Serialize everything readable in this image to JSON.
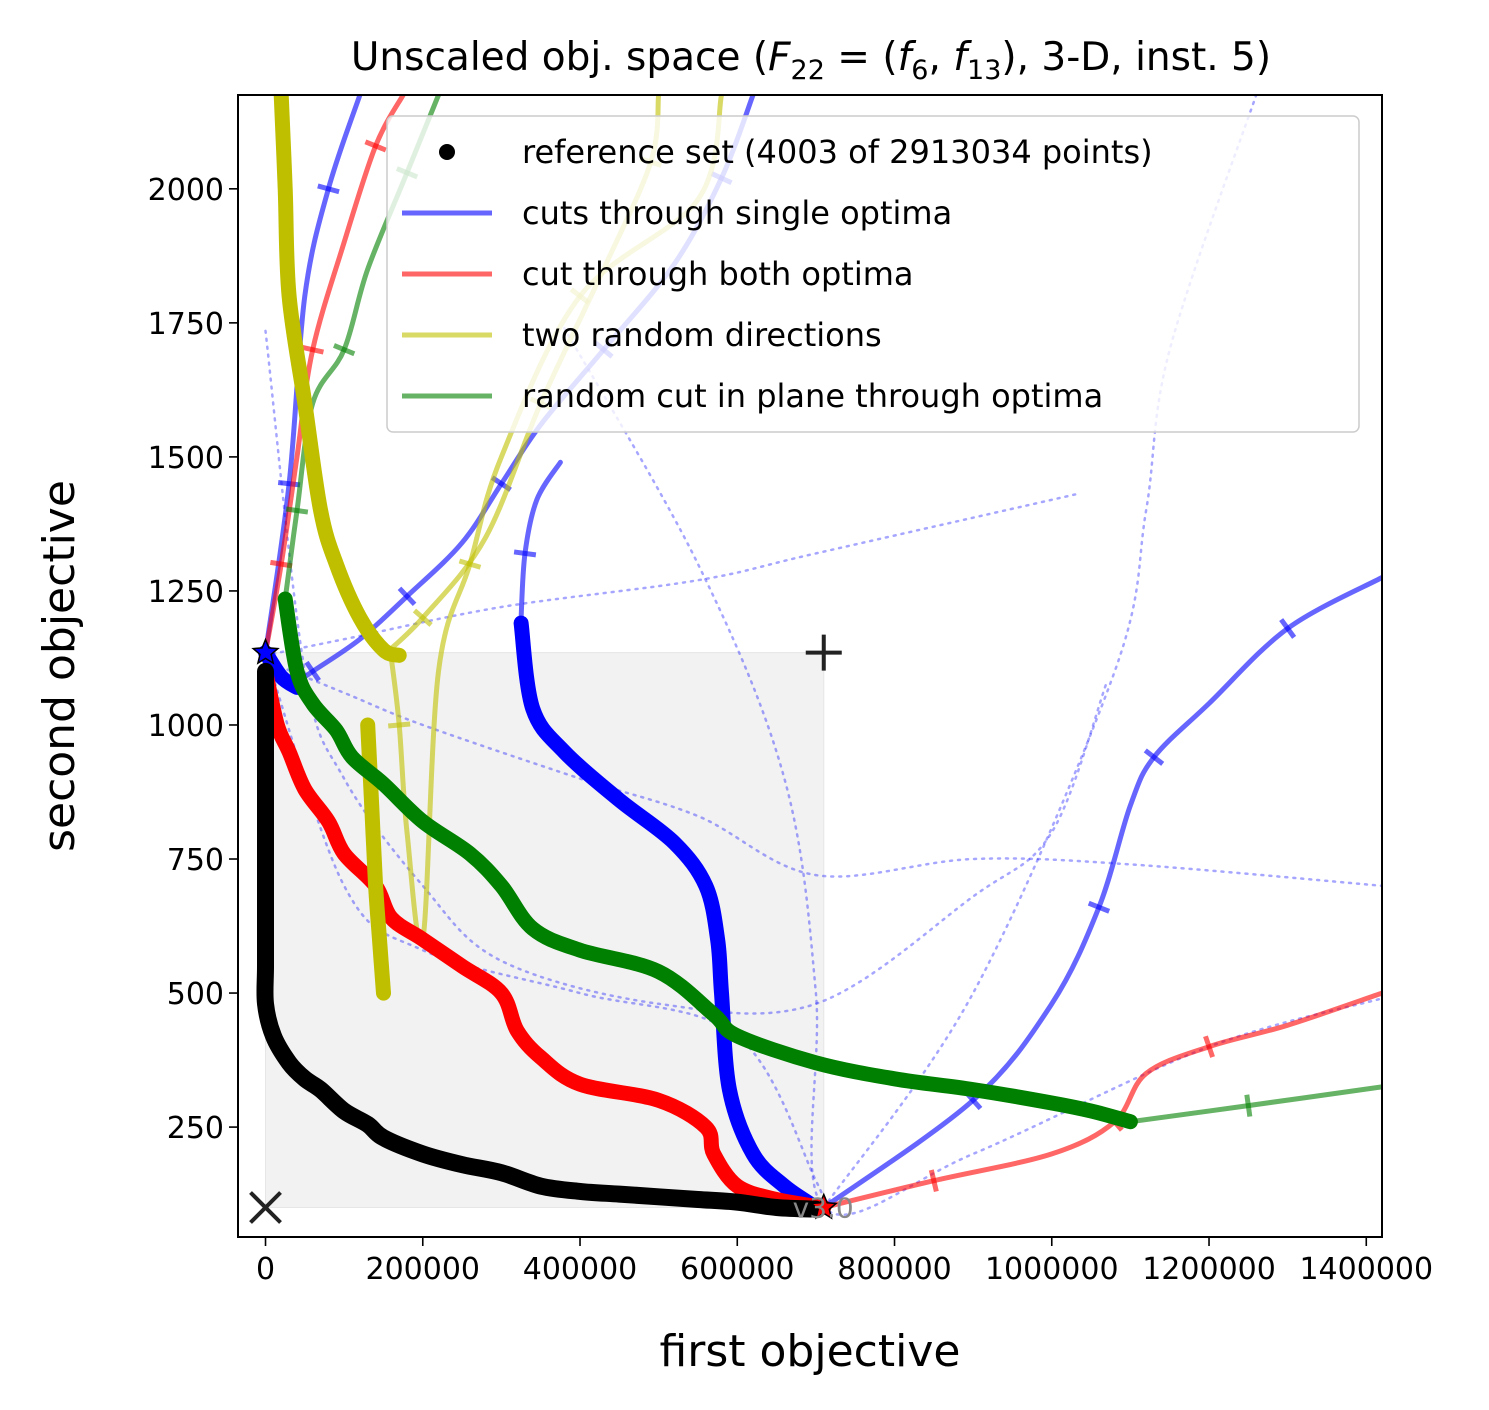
{
  "chart_data": {
    "type": "line",
    "title": "Unscaled obj. space (F22 = (f6, f13), 3-D, inst. 5)",
    "title_parts": {
      "prefix": "Unscaled obj. space (",
      "F": "F",
      "F_sub": "22",
      "eq": " = (",
      "f1": "f",
      "f1_sub": "6",
      "comma": ", ",
      "f2": "f",
      "f2_sub": "13",
      "suffix": "), 3-D, inst. 5)"
    },
    "xlabel": "first objective",
    "ylabel": "second objective",
    "xlim": [
      -35000,
      1420000
    ],
    "ylim": [
      45,
      2175
    ],
    "xticks": [
      0,
      200000,
      400000,
      600000,
      800000,
      1000000,
      1200000,
      1400000
    ],
    "xtick_labels": [
      "0",
      "200000",
      "400000",
      "600000",
      "800000",
      "1000000",
      "1200000",
      "1400000"
    ],
    "yticks": [
      250,
      500,
      750,
      1000,
      1250,
      1500,
      1750,
      2000
    ],
    "ytick_labels": [
      "250",
      "500",
      "750",
      "1000",
      "1250",
      "1500",
      "1750",
      "2000"
    ],
    "legend_placement": "top-right",
    "legend": [
      {
        "label": "reference set (4003 of 2913034 points)",
        "color": "#000000",
        "marker": "dot"
      },
      {
        "label": "cuts through single optima",
        "color": "#0000ff",
        "marker": "line"
      },
      {
        "label": "cut through both optima",
        "color": "#ff0000",
        "marker": "line"
      },
      {
        "label": "two random directions",
        "color": "#bfbf00",
        "marker": "line"
      },
      {
        "label": "random cut in plane through optima",
        "color": "#008000",
        "marker": "line"
      }
    ],
    "markers": {
      "ideal": {
        "x": 0,
        "y": 100
      },
      "nadir": {
        "x": 710000,
        "y": 1135
      },
      "opt1": {
        "x": 0,
        "y": 1135
      },
      "opt2": {
        "x": 710000,
        "y": 100
      }
    },
    "version_label": "v3.0",
    "reference_set": [
      [
        0,
        1100
      ],
      [
        0,
        950
      ],
      [
        0,
        800
      ],
      [
        0,
        650
      ],
      [
        0,
        550
      ],
      [
        0,
        480
      ],
      [
        10000,
        420
      ],
      [
        30000,
        370
      ],
      [
        50000,
        340
      ],
      [
        70000,
        320
      ],
      [
        100000,
        280
      ],
      [
        130000,
        255
      ],
      [
        150000,
        230
      ],
      [
        200000,
        200
      ],
      [
        250000,
        180
      ],
      [
        300000,
        165
      ],
      [
        350000,
        140
      ],
      [
        400000,
        130
      ],
      [
        450000,
        125
      ],
      [
        500000,
        120
      ],
      [
        550000,
        115
      ],
      [
        600000,
        110
      ],
      [
        650000,
        100
      ],
      [
        700000,
        97
      ]
    ],
    "series": [
      {
        "group": "single",
        "style": "thin",
        "points": [
          [
            710000,
            100
          ],
          [
            900000,
            300
          ],
          [
            1000000,
            480
          ],
          [
            1060000,
            660
          ],
          [
            1100000,
            850
          ],
          [
            1130000,
            940
          ],
          [
            1200000,
            1040
          ],
          [
            1300000,
            1180
          ],
          [
            1420000,
            1275
          ]
        ]
      },
      {
        "group": "single",
        "style": "thin",
        "points": [
          [
            30000,
            1070
          ],
          [
            60000,
            1100
          ],
          [
            120000,
            1160
          ],
          [
            180000,
            1240
          ],
          [
            250000,
            1340
          ],
          [
            300000,
            1450
          ],
          [
            350000,
            1560
          ],
          [
            430000,
            1700
          ],
          [
            520000,
            1860
          ],
          [
            580000,
            2020
          ],
          [
            620000,
            2175
          ]
        ]
      },
      {
        "group": "single",
        "style": "thin",
        "points": [
          [
            0,
            1135
          ],
          [
            30000,
            1450
          ],
          [
            50000,
            1800
          ],
          [
            80000,
            2000
          ],
          [
            120000,
            2175
          ]
        ]
      },
      {
        "group": "single",
        "style": "thin",
        "points": [
          [
            325000,
            1200
          ],
          [
            330000,
            1320
          ],
          [
            345000,
            1420
          ],
          [
            375000,
            1490
          ]
        ]
      },
      {
        "group": "single",
        "style": "thick",
        "points": [
          [
            325000,
            1190
          ],
          [
            340000,
            1030
          ],
          [
            380000,
            950
          ],
          [
            450000,
            860
          ],
          [
            520000,
            780
          ],
          [
            560000,
            700
          ],
          [
            575000,
            600
          ],
          [
            580000,
            500
          ],
          [
            590000,
            320
          ],
          [
            620000,
            200
          ],
          [
            660000,
            140
          ],
          [
            700000,
            100
          ]
        ]
      },
      {
        "group": "single",
        "style": "thick",
        "points": [
          [
            0,
            1135
          ],
          [
            20000,
            1090
          ],
          [
            40000,
            1070
          ]
        ]
      },
      {
        "group": "single",
        "style": "dotted",
        "points": [
          [
            0,
            1130
          ],
          [
            100000,
            1160
          ],
          [
            300000,
            1220
          ],
          [
            550000,
            1270
          ],
          [
            700000,
            1320
          ],
          [
            1030000,
            1430
          ]
        ]
      },
      {
        "group": "single",
        "style": "dotted",
        "points": [
          [
            0,
            1120
          ],
          [
            100000,
            1060
          ],
          [
            200000,
            1000
          ],
          [
            400000,
            900
          ],
          [
            550000,
            830
          ],
          [
            700000,
            720
          ],
          [
            900000,
            750
          ],
          [
            1100000,
            740
          ],
          [
            1420000,
            700
          ]
        ]
      },
      {
        "group": "single",
        "style": "dotted",
        "points": [
          [
            0,
            1735
          ],
          [
            50000,
            1100
          ],
          [
            100000,
            900
          ],
          [
            200000,
            700
          ],
          [
            300000,
            560
          ],
          [
            500000,
            480
          ],
          [
            700000,
            480
          ],
          [
            900000,
            680
          ],
          [
            1000000,
            800
          ],
          [
            1070000,
            1080
          ]
        ]
      },
      {
        "group": "single",
        "style": "dotted",
        "points": [
          [
            380000,
            1740
          ],
          [
            550000,
            1300
          ],
          [
            660000,
            900
          ],
          [
            700000,
            500
          ],
          [
            710000,
            100
          ],
          [
            900000,
            200
          ],
          [
            1200000,
            400
          ],
          [
            1420000,
            490
          ]
        ]
      },
      {
        "group": "single",
        "style": "dotted",
        "points": [
          [
            710000,
            100
          ],
          [
            900000,
            500
          ],
          [
            1080000,
            1100
          ],
          [
            1120000,
            1400
          ],
          [
            1150000,
            1700
          ],
          [
            1260000,
            2175
          ]
        ]
      },
      {
        "group": "single",
        "style": "dotted",
        "points": [
          [
            0,
            1135
          ],
          [
            100000,
            700
          ],
          [
            200000,
            580
          ],
          [
            400000,
            500
          ],
          [
            600000,
            420
          ],
          [
            700000,
            150
          ],
          [
            710000,
            100
          ]
        ]
      },
      {
        "group": "both",
        "style": "thin",
        "points": [
          [
            0,
            1135
          ],
          [
            20000,
            1300
          ],
          [
            40000,
            1500
          ],
          [
            60000,
            1700
          ],
          [
            100000,
            1900
          ],
          [
            140000,
            2080
          ],
          [
            175000,
            2175
          ]
        ]
      },
      {
        "group": "both",
        "style": "thin",
        "points": [
          [
            710000,
            100
          ],
          [
            850000,
            150
          ],
          [
            1000000,
            200
          ],
          [
            1080000,
            260
          ],
          [
            1120000,
            350
          ],
          [
            1200000,
            400
          ],
          [
            1300000,
            440
          ],
          [
            1420000,
            500
          ]
        ]
      },
      {
        "group": "both",
        "style": "thick",
        "points": [
          [
            0,
            1100
          ],
          [
            15000,
            1000
          ],
          [
            30000,
            950
          ],
          [
            50000,
            880
          ],
          [
            80000,
            820
          ],
          [
            100000,
            760
          ],
          [
            140000,
            700
          ],
          [
            160000,
            640
          ],
          [
            200000,
            600
          ],
          [
            250000,
            550
          ],
          [
            300000,
            500
          ],
          [
            320000,
            430
          ],
          [
            350000,
            380
          ],
          [
            400000,
            330
          ],
          [
            500000,
            300
          ],
          [
            560000,
            250
          ],
          [
            570000,
            200
          ],
          [
            600000,
            140
          ],
          [
            650000,
            115
          ],
          [
            710000,
            100
          ]
        ]
      },
      {
        "group": "random",
        "style": "thin",
        "points": [
          [
            160000,
            1125
          ],
          [
            170000,
            1000
          ],
          [
            180000,
            800
          ],
          [
            200000,
            600
          ],
          [
            220000,
            1100
          ],
          [
            260000,
            1300
          ],
          [
            300000,
            1500
          ],
          [
            400000,
            1800
          ],
          [
            550000,
            1980
          ],
          [
            580000,
            2175
          ]
        ]
      },
      {
        "group": "random",
        "style": "thin",
        "points": [
          [
            150000,
            1130
          ],
          [
            200000,
            1200
          ],
          [
            280000,
            1350
          ],
          [
            350000,
            1600
          ],
          [
            430000,
            1850
          ],
          [
            490000,
            2050
          ],
          [
            500000,
            2175
          ]
        ]
      },
      {
        "group": "random",
        "style": "thick",
        "points": [
          [
            20000,
            2175
          ],
          [
            25000,
            2000
          ],
          [
            30000,
            1800
          ],
          [
            50000,
            1600
          ],
          [
            70000,
            1400
          ],
          [
            90000,
            1300
          ],
          [
            120000,
            1200
          ],
          [
            150000,
            1140
          ],
          [
            170000,
            1130
          ]
        ]
      },
      {
        "group": "random",
        "style": "thick",
        "points": [
          [
            130000,
            1000
          ],
          [
            135000,
            850
          ],
          [
            140000,
            700
          ],
          [
            145000,
            600
          ],
          [
            150000,
            500
          ]
        ]
      },
      {
        "group": "plane",
        "style": "thin",
        "points": [
          [
            25000,
            1235
          ],
          [
            40000,
            1400
          ],
          [
            60000,
            1600
          ],
          [
            100000,
            1700
          ],
          [
            130000,
            1850
          ],
          [
            180000,
            2030
          ],
          [
            220000,
            2175
          ]
        ]
      },
      {
        "group": "plane",
        "style": "thin",
        "points": [
          [
            1100000,
            260
          ],
          [
            1250000,
            290
          ],
          [
            1420000,
            325
          ]
        ]
      },
      {
        "group": "plane",
        "style": "thick",
        "points": [
          [
            25000,
            1235
          ],
          [
            40000,
            1100
          ],
          [
            60000,
            1040
          ],
          [
            90000,
            990
          ],
          [
            110000,
            940
          ],
          [
            150000,
            890
          ],
          [
            200000,
            820
          ],
          [
            260000,
            760
          ],
          [
            300000,
            700
          ],
          [
            340000,
            620
          ],
          [
            400000,
            580
          ],
          [
            500000,
            540
          ],
          [
            570000,
            460
          ],
          [
            600000,
            420
          ],
          [
            700000,
            370
          ],
          [
            800000,
            340
          ],
          [
            900000,
            320
          ],
          [
            1000000,
            295
          ],
          [
            1050000,
            280
          ],
          [
            1100000,
            260
          ]
        ]
      }
    ]
  }
}
